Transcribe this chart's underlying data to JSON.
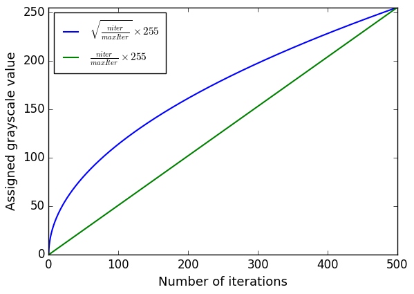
{
  "x_min": 0,
  "x_max": 500,
  "y_min": 0,
  "y_max": 255,
  "xlabel": "Number of iterations",
  "ylabel": "Assigned grayscale value",
  "line1_color": "blue",
  "line2_color": "green",
  "line1_label": "$\\sqrt{\\frac{niter}{maxIter}} \\times 255$",
  "line2_label": "$\\frac{niter}{maxIter} \\times 255$",
  "figsize": [
    5.99,
    4.25
  ],
  "dpi": 100,
  "xticks": [
    0,
    100,
    200,
    300,
    400,
    500
  ],
  "yticks": [
    0,
    50,
    100,
    150,
    200,
    250
  ]
}
